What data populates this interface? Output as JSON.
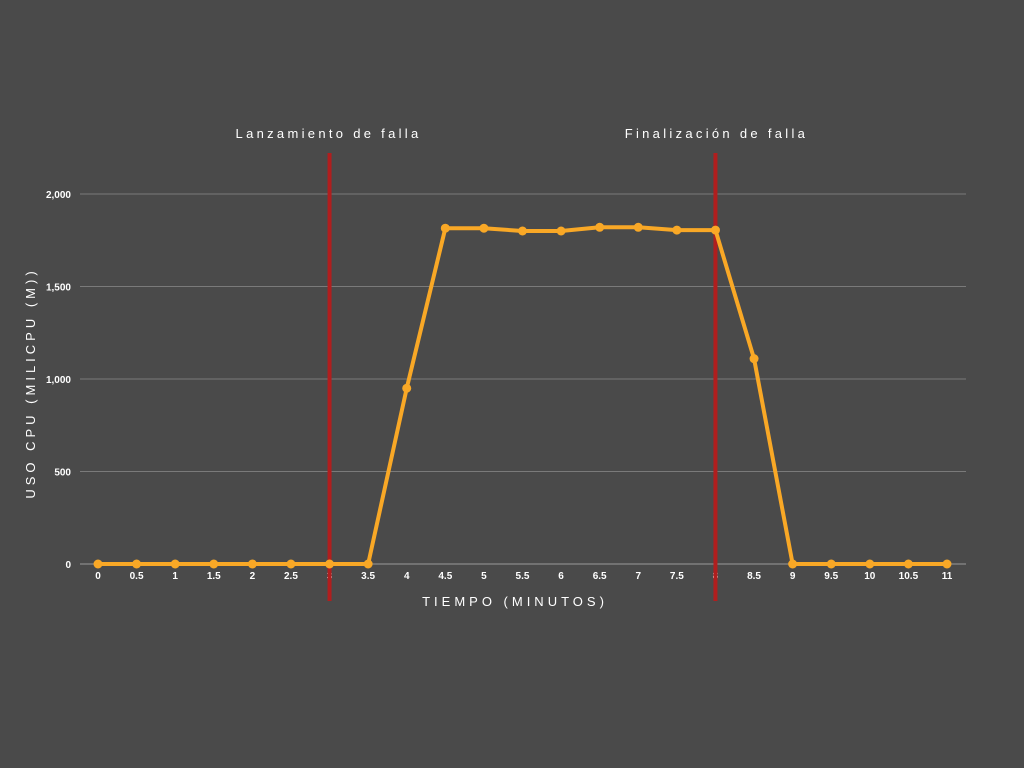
{
  "chart_data": {
    "type": "line",
    "title": "",
    "xlabel": "TIEMPO (MINUTOS)",
    "ylabel": "USO CPU (MILICPU (M))",
    "x": [
      "0",
      "0.5",
      "1",
      "1.5",
      "2",
      "2.5",
      "3",
      "3.5",
      "4",
      "4.5",
      "5",
      "5.5",
      "6",
      "6.5",
      "7",
      "7.5",
      "8",
      "8.5",
      "9",
      "9.5",
      "10",
      "10.5",
      "11"
    ],
    "series": [
      {
        "name": "",
        "values": [
          0,
          0,
          0,
          0,
          0,
          0,
          0,
          0,
          950,
          1815,
          1815,
          1800,
          1800,
          1820,
          1820,
          1805,
          1805,
          1110,
          0,
          0,
          0,
          0,
          0
        ]
      }
    ],
    "ylim": [
      0,
      2000
    ],
    "yticks": [
      0,
      500,
      1000,
      1500,
      2000
    ],
    "ytick_labels": [
      "0",
      "500",
      "1,000",
      "1,500",
      "2,000"
    ],
    "grid": true,
    "legend": "none",
    "annotations": [
      {
        "label": "Lanzamiento de falla",
        "x": 3
      },
      {
        "label": "Finalización de falla",
        "x": 8
      }
    ],
    "colors": {
      "background": "#4a4a4a",
      "line": "#f9a826",
      "marker_line": "#b01e1e",
      "grid": "#7a7a7a",
      "text": "#ffffff"
    }
  }
}
